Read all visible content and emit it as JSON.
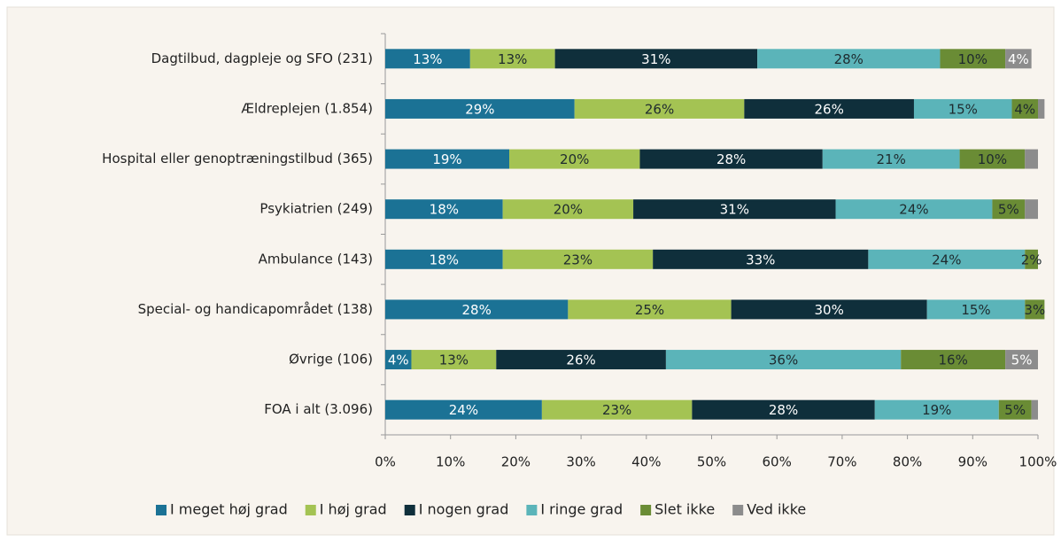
{
  "chart_data": {
    "type": "stacked_bar_horizontal",
    "categories": [
      "Dagtilbud, dagpleje og SFO (231)",
      "Ældreplejen (1.854)",
      "Hospital eller genoptræningstilbud (365)",
      "Psykiatrien (249)",
      "Ambulance (143)",
      "Special- og handicapområdet (138)",
      "Øvrige (106)",
      "FOA i alt (3.096)"
    ],
    "series": [
      {
        "name": "I meget høj grad",
        "color": "#1b7295",
        "values": [
          13,
          29,
          19,
          18,
          18,
          28,
          4,
          24
        ],
        "value_labels": [
          "13%",
          "29%",
          "19%",
          "18%",
          "18%",
          "28%",
          "4%",
          "24%"
        ]
      },
      {
        "name": "I høj grad",
        "color": "#a4c353",
        "values": [
          13,
          26,
          20,
          20,
          23,
          25,
          13,
          23
        ],
        "value_labels": [
          "13%",
          "26%",
          "20%",
          "20%",
          "23%",
          "25%",
          "13%",
          "23%"
        ]
      },
      {
        "name": "I nogen grad",
        "color": "#0f2f3b",
        "values": [
          31,
          26,
          28,
          31,
          33,
          30,
          26,
          28
        ],
        "value_labels": [
          "31%",
          "26%",
          "28%",
          "31%",
          "33%",
          "30%",
          "26%",
          "28%"
        ]
      },
      {
        "name": "I ringe grad",
        "color": "#5bb4b9",
        "values": [
          28,
          15,
          21,
          24,
          24,
          15,
          36,
          19
        ],
        "value_labels": [
          "28%",
          "15%",
          "21%",
          "24%",
          "24%",
          "15%",
          "36%",
          "19%"
        ]
      },
      {
        "name": "Slet ikke",
        "color": "#6a8c35",
        "values": [
          10,
          4,
          10,
          5,
          2,
          3,
          16,
          5
        ],
        "value_labels": [
          "10%",
          "4%",
          "10%",
          "5%",
          "2%",
          "3%",
          "16%",
          "5%"
        ]
      },
      {
        "name": "Ved ikke",
        "color": "#8c8c8c",
        "values": [
          4,
          1,
          2,
          2,
          0,
          0,
          5,
          1
        ],
        "value_labels": [
          "4%",
          null,
          null,
          null,
          null,
          null,
          "5%",
          null
        ]
      }
    ],
    "xlim": [
      0,
      100
    ],
    "xticks": [
      {
        "value": 0,
        "label": "0%"
      },
      {
        "value": 10,
        "label": "10%"
      },
      {
        "value": 20,
        "label": "20%"
      },
      {
        "value": 30,
        "label": "30%"
      },
      {
        "value": 40,
        "label": "40%"
      },
      {
        "value": 50,
        "label": "50%"
      },
      {
        "value": 60,
        "label": "60%"
      },
      {
        "value": 70,
        "label": "70%"
      },
      {
        "value": 80,
        "label": "80%"
      },
      {
        "value": 90,
        "label": "90%"
      },
      {
        "value": 100,
        "label": "100%"
      }
    ],
    "legend": "bottom"
  }
}
